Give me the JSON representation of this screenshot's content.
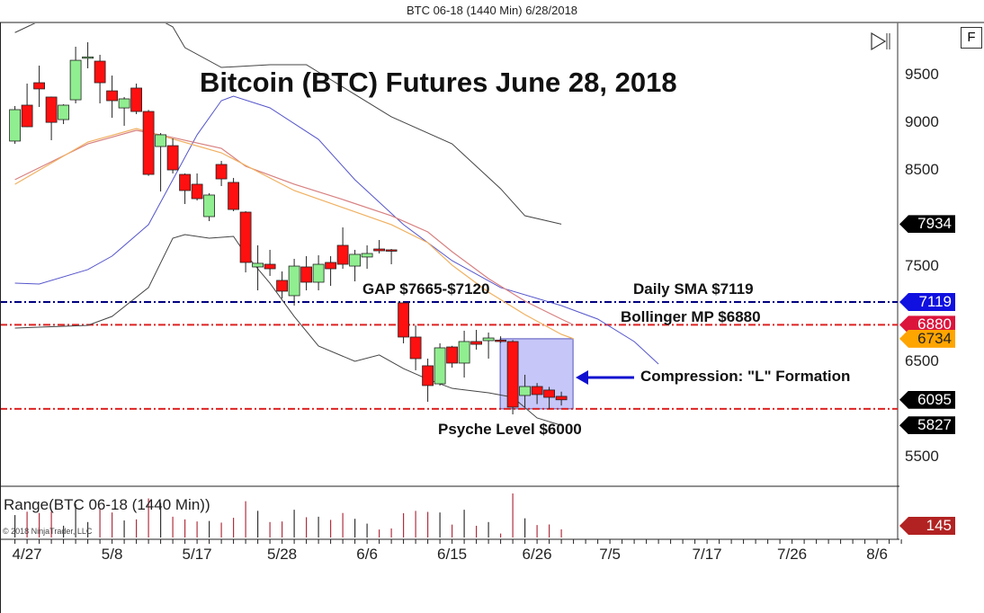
{
  "window": {
    "title": "BTC 06-18 (1440 Min)  6/28/2018",
    "f_button": "F",
    "scroll_end_icon": "skip-to-end-icon"
  },
  "indicator_panel": {
    "label": "Range(BTC 06-18 (1440 Min))",
    "copyright": "© 2018 NinjaTrader, LLC",
    "last_value": "145"
  },
  "annotations": {
    "headline": "Bitcoin (BTC) Futures June 28, 2018",
    "gap": "GAP $7665-$7120",
    "sma": "Daily SMA $7119",
    "bollinger": "Bollinger MP $6880",
    "compression": "Compression: \"L\" Formation",
    "psyche": "Psyche Level $6000"
  },
  "price_tags": [
    {
      "value": "7934",
      "color": "#000000"
    },
    {
      "value": "7119",
      "color": "#1010e0"
    },
    {
      "value": "6880",
      "color": "#dc143c"
    },
    {
      "value": "6734",
      "color": "#ffa500"
    },
    {
      "value": "6095",
      "color": "#000000"
    },
    {
      "value": "5827",
      "color": "#000000"
    }
  ],
  "chart_data": {
    "type": "candlestick",
    "title": "BTC 06-18 (1440 Min)",
    "y_ticks": [
      "9500",
      "9000",
      "8500",
      "7500",
      "6500",
      "5500"
    ],
    "x_ticks": [
      "4/27",
      "5/8",
      "5/17",
      "5/28",
      "6/6",
      "6/15",
      "6/26",
      "7/5",
      "7/17",
      "7/26",
      "8/6"
    ],
    "ylim": [
      5100,
      10000
    ],
    "colors": {
      "up": "#90ee90",
      "down": "#ff1010",
      "outline": "#222222"
    },
    "candles_ohlc": [
      [
        "4/26",
        8804,
        9171,
        8775,
        9133
      ],
      [
        "4/27",
        9180,
        9406,
        8950,
        8954
      ],
      [
        "4/30",
        9415,
        9594,
        9161,
        9350
      ],
      [
        "5/1",
        9265,
        9270,
        8813,
        9000
      ],
      [
        "5/2",
        9029,
        9190,
        8982,
        9180
      ],
      [
        "5/3",
        9236,
        9792,
        9199,
        9650
      ],
      [
        "5/4",
        9679,
        9839,
        9566,
        9685
      ],
      [
        "5/7",
        9641,
        9707,
        9199,
        9415
      ],
      [
        "5/8",
        9330,
        9490,
        9048,
        9227
      ],
      [
        "5/9",
        9151,
        9265,
        8964,
        9246
      ],
      [
        "5/10",
        9359,
        9406,
        9086,
        9114
      ],
      [
        "5/11",
        9114,
        9130,
        8440,
        8455
      ],
      [
        "5/14",
        8747,
        8888,
        8276,
        8870
      ],
      [
        "5/15",
        8756,
        8832,
        8465,
        8502
      ],
      [
        "5/16",
        8455,
        8465,
        8145,
        8286
      ],
      [
        "5/17",
        8352,
        8465,
        8182,
        8201
      ],
      [
        "5/18",
        8013,
        8258,
        7966,
        8239
      ],
      [
        "5/21",
        8559,
        8596,
        8333,
        8408
      ],
      [
        "5/22",
        8371,
        8418,
        8070,
        8088
      ],
      [
        "5/23",
        8060,
        8070,
        7429,
        7533
      ],
      [
        "5/24",
        7486,
        7712,
        7241,
        7524
      ],
      [
        "5/25",
        7514,
        7665,
        7392,
        7467
      ],
      [
        "5/28",
        7345,
        7439,
        7156,
        7232
      ],
      [
        "5/29",
        7185,
        7571,
        7081,
        7495
      ],
      [
        "5/30",
        7486,
        7599,
        7241,
        7326
      ],
      [
        "5/31",
        7326,
        7608,
        7241,
        7514
      ],
      [
        "6/1",
        7533,
        7599,
        7288,
        7467
      ],
      [
        "6/4",
        7712,
        7900,
        7467,
        7514
      ],
      [
        "6/5",
        7495,
        7665,
        7335,
        7618
      ],
      [
        "6/6",
        7590,
        7712,
        7467,
        7627
      ],
      [
        "6/7",
        7674,
        7768,
        7627,
        7655
      ],
      [
        "6/8",
        7665,
        7674,
        7514,
        7660
      ],
      [
        "6/11",
        7110,
        7115,
        6686,
        6752
      ],
      [
        "6/12",
        6752,
        6874,
        6404,
        6526
      ],
      [
        "6/13",
        6451,
        6526,
        6074,
        6244
      ],
      [
        "6/14",
        6262,
        6686,
        6244,
        6639
      ],
      [
        "6/15",
        6648,
        6660,
        6432,
        6479
      ],
      [
        "6/18",
        6479,
        6818,
        6328,
        6705
      ],
      [
        "6/19",
        6705,
        6827,
        6620,
        6676
      ],
      [
        "6/20",
        6714,
        6799,
        6526,
        6742
      ],
      [
        "6/21",
        6720,
        6760,
        6690,
        6705
      ],
      [
        "6/22",
        6705,
        6720,
        5942,
        6018
      ],
      [
        "6/25",
        6140,
        6357,
        6018,
        6234
      ],
      [
        "6/26",
        6234,
        6270,
        6050,
        6150
      ],
      [
        "6/27",
        6197,
        6230,
        6000,
        6121
      ],
      [
        "6/28",
        6131,
        6180,
        6035,
        6095
      ]
    ],
    "bollinger_upper": [
      [
        "4/26",
        9940
      ],
      [
        "4/27",
        10000
      ],
      [
        "4/30",
        10060
      ],
      [
        "5/3",
        10200
      ],
      [
        "5/10",
        10200
      ],
      [
        "5/15",
        10000
      ],
      [
        "5/16",
        9782
      ],
      [
        "5/21",
        9575
      ],
      [
        "5/25",
        9604
      ],
      [
        "5/30",
        9604
      ],
      [
        "6/8",
        9058
      ],
      [
        "6/15",
        8775
      ],
      [
        "6/21",
        8305
      ],
      [
        "6/25",
        8022
      ],
      [
        "6/28",
        7934
      ]
    ],
    "bollinger_middle": [
      [
        "4/26",
        7316
      ],
      [
        "4/30",
        7307
      ],
      [
        "5/4",
        7458
      ],
      [
        "5/8",
        7600
      ],
      [
        "5/11",
        7929
      ],
      [
        "5/15",
        8399
      ],
      [
        "5/17",
        8869
      ],
      [
        "5/21",
        9227
      ],
      [
        "5/22",
        9274
      ],
      [
        "5/25",
        9152
      ],
      [
        "5/31",
        8822
      ],
      [
        "6/5",
        8399
      ],
      [
        "6/11",
        7929
      ],
      [
        "6/15",
        7552
      ],
      [
        "6/21",
        7270
      ],
      [
        "6/28",
        7081
      ],
      [
        "7/3",
        6940
      ],
      [
        "7/9",
        6705
      ],
      [
        "7/11",
        6469
      ]
    ],
    "bollinger_lower": [
      [
        "4/26",
        6846
      ],
      [
        "5/4",
        6874
      ],
      [
        "5/8",
        6968
      ],
      [
        "5/11",
        7270
      ],
      [
        "5/15",
        7787
      ],
      [
        "5/16",
        7825
      ],
      [
        "5/18",
        7787
      ],
      [
        "5/22",
        7806
      ],
      [
        "5/23",
        7618
      ],
      [
        "5/25",
        7316
      ],
      [
        "5/29",
        6968
      ],
      [
        "5/31",
        6658
      ],
      [
        "6/5",
        6498
      ],
      [
        "6/7",
        6564
      ],
      [
        "6/11",
        6422
      ],
      [
        "6/13",
        6310
      ],
      [
        "6/15",
        6215
      ],
      [
        "6/20",
        6168
      ],
      [
        "6/22",
        6121
      ],
      [
        "6/26",
        5905
      ],
      [
        "6/28",
        5827
      ]
    ],
    "ma_red": [
      [
        "4/26",
        8400
      ],
      [
        "5/1",
        8587
      ],
      [
        "5/4",
        8775
      ],
      [
        "5/10",
        8916
      ],
      [
        "5/14",
        8869
      ],
      [
        "5/21",
        8728
      ],
      [
        "5/23",
        8540
      ],
      [
        "5/29",
        8352
      ],
      [
        "6/4",
        8192
      ],
      [
        "6/8",
        8022
      ],
      [
        "6/13",
        7853
      ],
      [
        "6/15",
        7646
      ],
      [
        "6/20",
        7364
      ],
      [
        "6/25",
        7128
      ],
      [
        "6/28",
        6940
      ],
      [
        "6/29",
        6880
      ]
    ],
    "ma_orange": [
      [
        "4/26",
        8352
      ],
      [
        "5/4",
        8794
      ],
      [
        "5/10",
        8935
      ],
      [
        "5/21",
        8681
      ],
      [
        "5/29",
        8286
      ],
      [
        "6/8",
        7929
      ],
      [
        "6/13",
        7740
      ],
      [
        "6/15",
        7505
      ],
      [
        "6/20",
        7222
      ],
      [
        "6/25",
        6987
      ],
      [
        "6/28",
        6780
      ],
      [
        "6/29",
        6734
      ]
    ],
    "horizontal_lines": [
      {
        "price": 7119,
        "color": "#000080",
        "style": "dash-dot"
      },
      {
        "price": 6880,
        "color": "#dd2222",
        "style": "dash-dot"
      },
      {
        "price": 6000,
        "color": "#dd2222",
        "style": "dash-dot"
      }
    ],
    "compression_box": {
      "from": "6/22",
      "to": "6/28",
      "high": 6734,
      "low": 6000,
      "color": "#b8b8f8"
    }
  }
}
